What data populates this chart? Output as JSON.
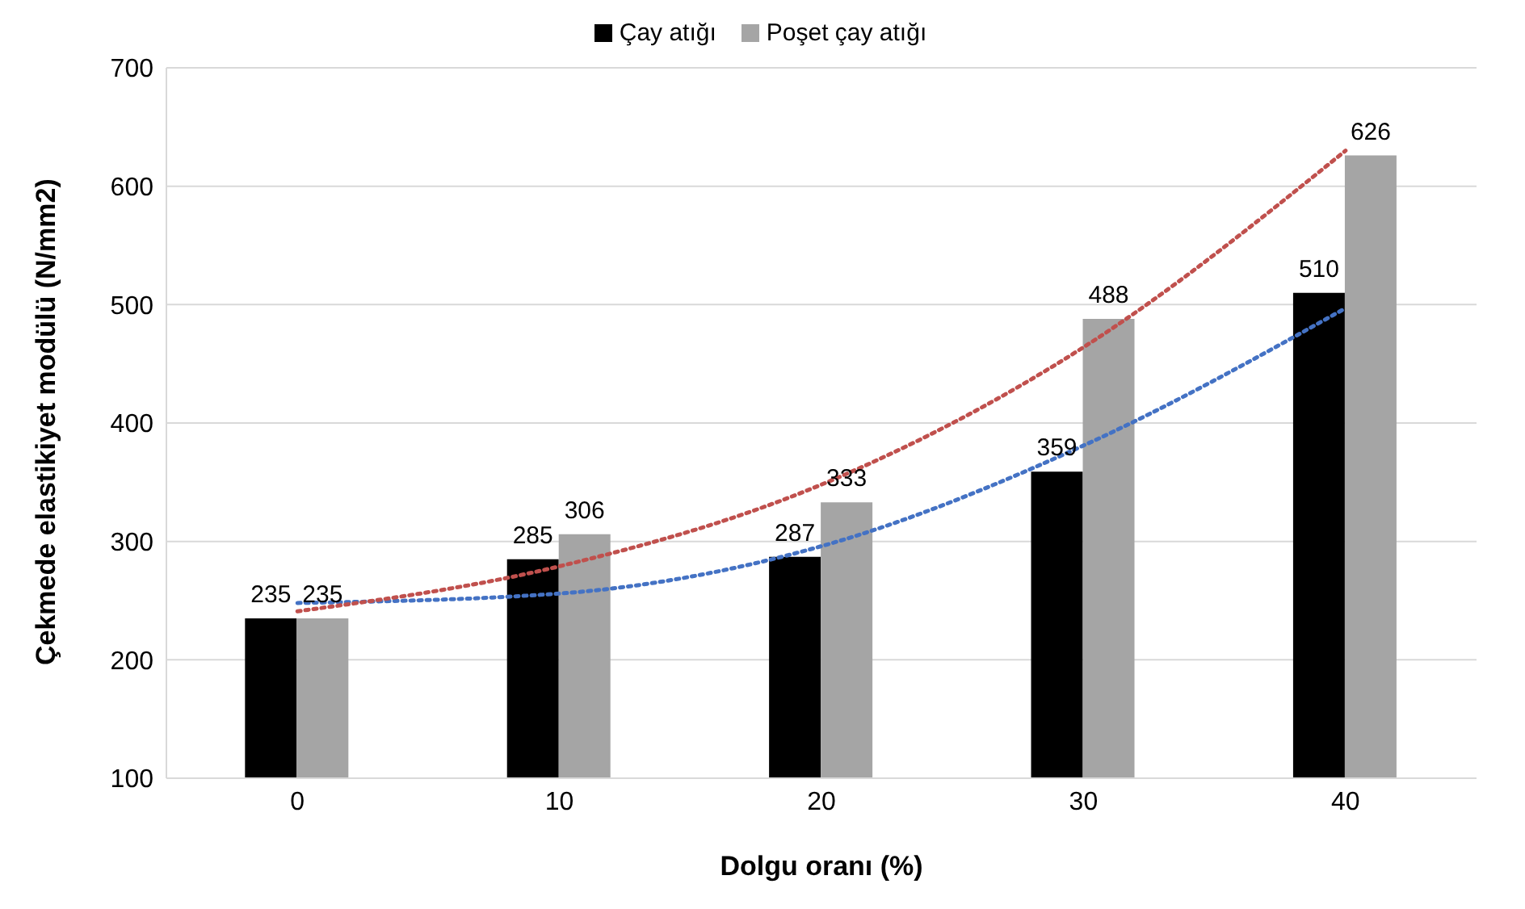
{
  "chart_data": {
    "type": "bar",
    "xlabel": "Dolgu oranı (%)",
    "ylabel": "Çekmede elastikiyet modülü (N/mm2)",
    "categories": [
      "0",
      "10",
      "20",
      "30",
      "40"
    ],
    "series": [
      {
        "name": "Çay atığı",
        "color": "#000000",
        "values": [
          235,
          285,
          287,
          359,
          510
        ],
        "value_labels": [
          "235",
          "285",
          "287",
          "359",
          "510"
        ]
      },
      {
        "name": "Poşet çay atığı",
        "color": "#a5a5a5",
        "values": [
          235,
          306,
          333,
          488,
          626
        ],
        "value_labels": [
          "235",
          "306",
          "333",
          "488",
          "626"
        ]
      },
      {
        "type": "line",
        "color": "#4472c4",
        "line_style": "dotted",
        "values": [
          248,
          256,
          296,
          381,
          497
        ]
      },
      {
        "type": "line",
        "color": "#c0504d",
        "line_style": "dotted",
        "values": [
          241,
          279,
          348,
          464,
          630
        ]
      }
    ],
    "ylim": [
      100,
      700
    ],
    "yticks": [
      100,
      200,
      300,
      400,
      500,
      600,
      700
    ],
    "grid": "y",
    "legend": "top",
    "marker": "none"
  }
}
